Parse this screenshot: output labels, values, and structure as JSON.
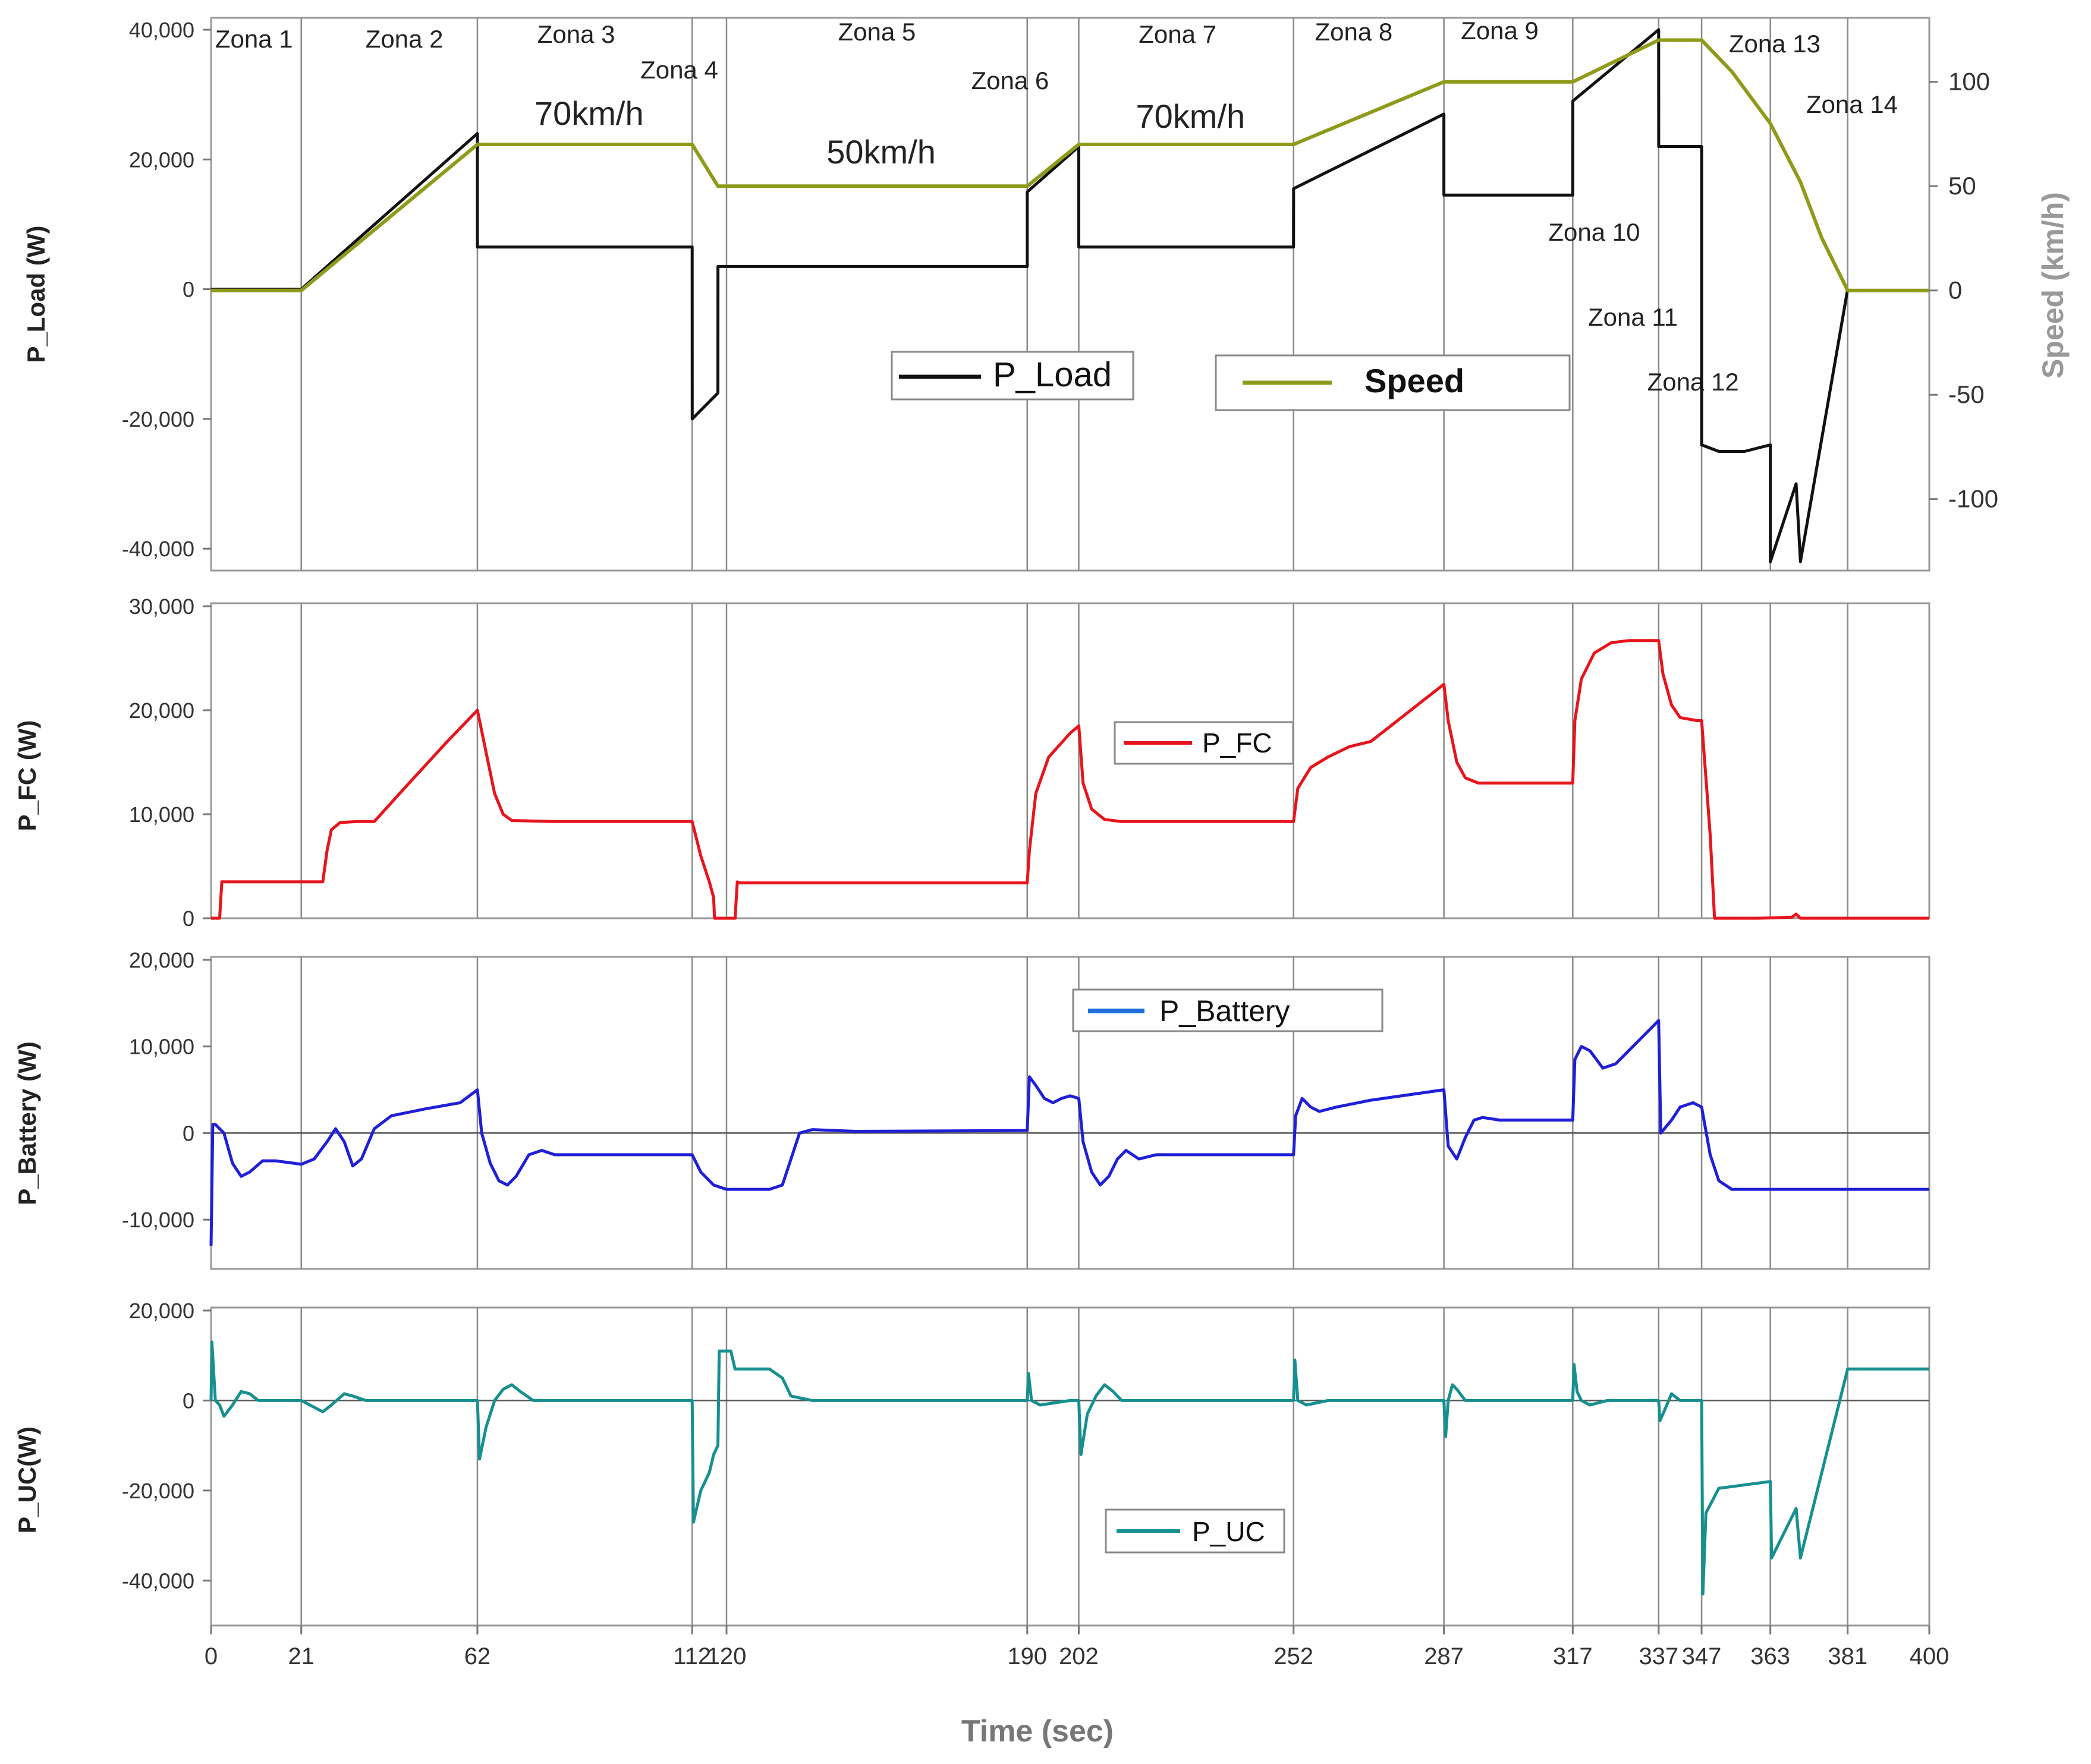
{
  "chart_data": {
    "type": "line",
    "x_label": "Time (sec)",
    "x_ticks": [
      0,
      21,
      62,
      112,
      120,
      190,
      202,
      252,
      287,
      317,
      337,
      347,
      363,
      381,
      400
    ],
    "xlim": [
      0,
      400
    ],
    "zone_boundaries": [
      21,
      62,
      112,
      120,
      190,
      202,
      252,
      287,
      317,
      337,
      347,
      363,
      381
    ],
    "zones": [
      {
        "label": "Zona 1",
        "x": 10
      },
      {
        "label": "Zona 2",
        "x": 45
      },
      {
        "label": "Zona 3",
        "x": 85
      },
      {
        "label": "Zona 4",
        "x": 109
      },
      {
        "label": "Zona 5",
        "x": 155
      },
      {
        "label": "Zona 6",
        "x": 186
      },
      {
        "label": "Zona 7",
        "x": 225
      },
      {
        "label": "Zona 8",
        "x": 266
      },
      {
        "label": "Zona 9",
        "x": 300
      },
      {
        "label": "Zona 10",
        "x": 322
      },
      {
        "label": "Zona 11",
        "x": 331
      },
      {
        "label": "Zona 12",
        "x": 345
      },
      {
        "label": "Zona 13",
        "x": 364
      },
      {
        "label": "Zona 14",
        "x": 382
      }
    ],
    "speed_annotations": [
      {
        "text": "70km/h",
        "x": 88
      },
      {
        "text": "50km/h",
        "x": 156
      },
      {
        "text": "70km/h",
        "x": 228
      }
    ],
    "panels": [
      {
        "id": "load",
        "ylabel": "P_Load (W)",
        "ylim": [
          -42000,
          40000
        ],
        "yticks": [
          -40000,
          -20000,
          0,
          20000,
          40000
        ],
        "ytick_labels": [
          "-40,000",
          "-20,000",
          "0",
          "20,000",
          "40,000"
        ],
        "y2label": "Speed (km/h)",
        "y2lim": [
          -130,
          125
        ],
        "y2ticks": [
          -100,
          -50,
          0,
          50,
          100
        ],
        "y2tick_labels": [
          "-100",
          "-50",
          "0",
          "50",
          "100"
        ],
        "series": [
          {
            "name": "P_Load",
            "color": "#111111",
            "axis": "left",
            "x": [
              0,
              21,
              62,
              62.01,
              112,
              112.01,
              118,
              118.01,
              190,
              190.01,
              202,
              202.01,
              252,
              252.01,
              287,
              287.01,
              317,
              317.01,
              337,
              337.01,
              347,
              347.01,
              351,
              357,
              363,
              363.01,
              369,
              370,
              381
            ],
            "y": [
              0,
              0,
              24000,
              6500,
              6500,
              -20000,
              -16000,
              3500,
              3500,
              15000,
              22000,
              6500,
              6500,
              15500,
              27000,
              14500,
              14500,
              29000,
              40000,
              22000,
              22000,
              -24000,
              -25000,
              -25000,
              -24000,
              -42000,
              -30000,
              -42000,
              0
            ]
          },
          {
            "name": "Speed",
            "color": "#8f9a1a",
            "axis": "right",
            "x": [
              0,
              21,
              62,
              112,
              118,
              190,
              202,
              252,
              287,
              317,
              337,
              347,
              354,
              363,
              370,
              375,
              381,
              400
            ],
            "y": [
              0,
              0,
              70,
              70,
              50,
              50,
              70,
              70,
              100,
              100,
              120,
              120,
              105,
              80,
              52,
              25,
              0,
              0
            ]
          }
        ],
        "legend": [
          "P_Load",
          "Speed"
        ]
      },
      {
        "id": "fc",
        "ylabel": "P_FC (W)",
        "ylim": [
          0,
          30000
        ],
        "yticks": [
          0,
          10000,
          20000,
          30000
        ],
        "ytick_labels": [
          "0",
          "10,000",
          "20,000",
          "30,000"
        ],
        "series": [
          {
            "name": "P_FC",
            "color": "#e8141c",
            "x": [
              0,
              2,
              2.5,
              3,
              21,
              26,
              27,
              28,
              30,
              34,
              38,
              45,
              55,
              62,
              64,
              66,
              68,
              70,
              80,
              112,
              114,
              116,
              117,
              117.2,
              122,
              122.5,
              123,
              190,
              190.5,
              192,
              195,
              200,
              202,
              203,
              205,
              208,
              212,
              220,
              252,
              253,
              256,
              260,
              265,
              270,
              287,
              288,
              290,
              292,
              295,
              300,
              317,
              317.5,
              319,
              322,
              326,
              330,
              337,
              338,
              340,
              342,
              346,
              347,
              349,
              350,
              360,
              368,
              369,
              370,
              400
            ],
            "y": [
              0,
              0,
              3500,
              3500,
              3500,
              3500,
              6500,
              8500,
              9200,
              9300,
              9300,
              12500,
              17000,
              20000,
              16000,
              12000,
              10000,
              9400,
              9300,
              9300,
              6000,
              3500,
              2000,
              0,
              0,
              3500,
              3400,
              3400,
              6500,
              12000,
              15500,
              17800,
              18500,
              13000,
              10500,
              9500,
              9300,
              9300,
              9300,
              12500,
              14500,
              15500,
              16500,
              17000,
              22500,
              19000,
              15000,
              13500,
              13000,
              13000,
              13000,
              19000,
              23000,
              25500,
              26500,
              26700,
              26700,
              23500,
              20500,
              19300,
              19000,
              19000,
              8000,
              0,
              0,
              100,
              400,
              0,
              0
            ]
          }
        ],
        "legend": [
          "P_FC"
        ]
      },
      {
        "id": "battery",
        "ylabel": "P_Battery (W)",
        "ylim": [
          -15000,
          20000
        ],
        "yticks": [
          -10000,
          0,
          10000,
          20000
        ],
        "ytick_labels": [
          "-10,000",
          "0",
          "10,000",
          "20,000"
        ],
        "series": [
          {
            "name": "P_Battery",
            "color": "#1f1fd8",
            "x": [
              0,
              0.4,
              1,
              3,
              5,
              7,
              9,
              12,
              15,
              21,
              24,
              27,
              29,
              31,
              33,
              35,
              38,
              42,
              50,
              58,
              62,
              63,
              65,
              67,
              69,
              71,
              74,
              77,
              80,
              90,
              112,
              114,
              117,
              120,
              125,
              130,
              133,
              135,
              137,
              140,
              150,
              190,
              190.5,
              192,
              194,
              196,
              198,
              200,
              202,
              203,
              205,
              207,
              209,
              211,
              213,
              216,
              220,
              230,
              252,
              252.5,
              254,
              256,
              258,
              262,
              270,
              287,
              288,
              290,
              292,
              294,
              296,
              300,
              317,
              317.5,
              319,
              321,
              324,
              327,
              330,
              334,
              337,
              337.5,
              340,
              342,
              345,
              347,
              349,
              351,
              354,
              360,
              380,
              400
            ],
            "y": [
              -13000,
              1000,
              1000,
              0,
              -3500,
              -5000,
              -4500,
              -3200,
              -3200,
              -3600,
              -3000,
              -1000,
              500,
              -1000,
              -3800,
              -3000,
              500,
              2000,
              2800,
              3500,
              5000,
              0,
              -3500,
              -5500,
              -6000,
              -5000,
              -2500,
              -2000,
              -2500,
              -2500,
              -2500,
              -4500,
              -6000,
              -6500,
              -6500,
              -6500,
              -6000,
              -3000,
              0,
              400,
              200,
              300,
              6500,
              5500,
              4000,
              3500,
              4000,
              4300,
              4000,
              -1000,
              -4500,
              -6000,
              -5000,
              -3000,
              -2000,
              -3000,
              -2500,
              -2500,
              -2500,
              2000,
              4000,
              3000,
              2500,
              3000,
              3800,
              5000,
              -1500,
              -3000,
              -500,
              1500,
              1800,
              1500,
              1500,
              8500,
              10000,
              9500,
              7500,
              8000,
              9500,
              11500,
              13000,
              0,
              1500,
              3000,
              3500,
              3000,
              -2500,
              -5500,
              -6500,
              -6500,
              -6500,
              -6500
            ]
          }
        ],
        "legend": [
          "P_Battery"
        ]
      },
      {
        "id": "uc",
        "ylabel": "P_UC(W)",
        "ylim": [
          -50000,
          20000
        ],
        "yticks": [
          -40000,
          -20000,
          0,
          20000
        ],
        "ytick_labels": [
          "-40,000",
          "-20,000",
          "0",
          "20,000"
        ],
        "series": [
          {
            "name": "P_UC",
            "color": "#178f8f",
            "x": [
              0,
              0.2,
              1,
              2,
              3,
              5,
              7,
              9,
              11,
              14,
              21,
              26,
              28,
              31,
              33,
              36,
              40,
              62,
              62.5,
              64,
              66,
              68,
              70,
              72,
              75,
              80,
              112,
              112.3,
              114,
              116,
              117,
              118,
              118.3,
              121,
              122,
              123,
              130,
              133,
              135,
              140,
              190,
              190.3,
              191,
              193,
              200,
              202,
              202.5,
              204,
              206,
              208,
              210,
              212,
              215,
              252,
              252.3,
              253,
              255,
              260,
              287,
              287.4,
              288,
              289,
              290,
              292,
              294,
              297,
              317,
              317.3,
              318,
              319,
              321,
              325,
              337,
              337.3,
              338,
              340,
              342,
              347,
              347.3,
              348,
              351,
              355,
              363,
              363.3,
              369,
              370,
              381,
              400
            ],
            "y": [
              0,
              13000,
              0,
              -1000,
              -3500,
              -1000,
              2000,
              1500,
              0,
              0,
              0,
              -2500,
              -1000,
              1500,
              1000,
              0,
              0,
              0,
              -13000,
              -6000,
              0,
              2500,
              3500,
              2000,
              0,
              0,
              0,
              -27000,
              -20000,
              -16000,
              -12000,
              -10000,
              11000,
              11000,
              7000,
              7000,
              7000,
              5000,
              1000,
              0,
              0,
              6000,
              0,
              -1000,
              0,
              0,
              -12000,
              -3000,
              1000,
              3500,
              2000,
              0,
              0,
              0,
              9000,
              0,
              -1000,
              0,
              0,
              -8000,
              0,
              3500,
              2500,
              0,
              0,
              0,
              0,
              8000,
              2000,
              0,
              -1000,
              0,
              0,
              -4500,
              -3000,
              1500,
              0,
              0,
              -43000,
              -25000,
              -19500,
              -19000,
              -18000,
              -35000,
              -24000,
              -35000,
              7000,
              7000
            ]
          }
        ],
        "legend": [
          "P_UC"
        ]
      }
    ]
  }
}
